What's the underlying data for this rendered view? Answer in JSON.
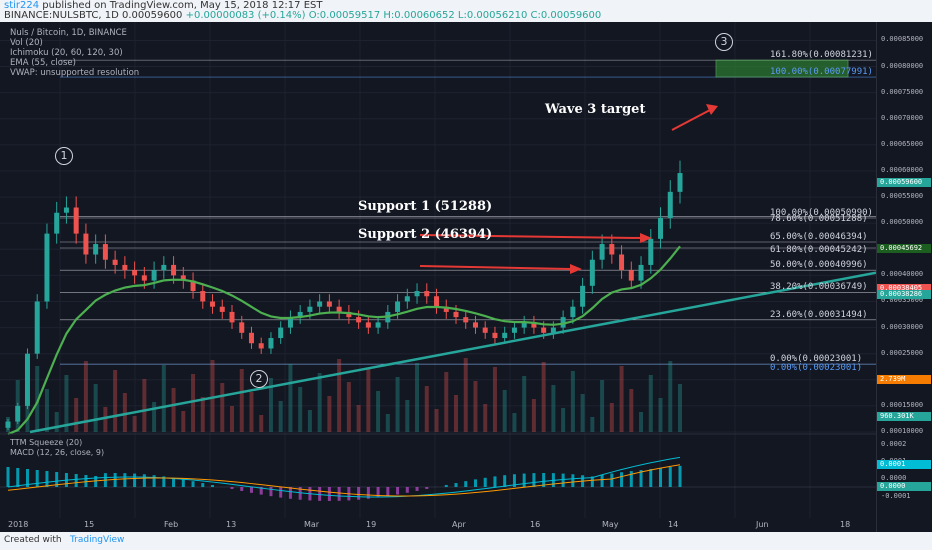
{
  "header": {
    "user": "stir224",
    "published": "published on TradingView.com, May 15, 2018 12:17 EST",
    "ticker_line": "BINANCE:NULSBTC, 1D 0.00059600",
    "change": "+0.00000083 (+0.14%)",
    "ohlc": "O:0.00059517 H:0.00060652 L:0.00056210 C:0.00059600"
  },
  "legend": {
    "title": "Nuls / Bitcoin, 1D, BINANCE",
    "vol": "Vol (20)",
    "ichimoku": "Ichimoku (20, 60, 120, 30)",
    "ema": "EMA (55, close)",
    "vwap": "VWAP: unsupported resolution"
  },
  "annotations": {
    "support1": "Support 1 (51288)",
    "support2": "Support 2 (46394)",
    "wave3": "Wave 3 target",
    "wave_labels": [
      "1",
      "2",
      "3"
    ]
  },
  "fib_levels": [
    {
      "label": "161.80%(0.00081231)",
      "price": 0.00081231,
      "color": "#d1d4dc"
    },
    {
      "label": "100.00%(0.00077991)",
      "price": 0.00077991,
      "color": "#5b9cf6"
    },
    {
      "label": "100.00%(0.00050990)",
      "price": 0.0005099,
      "color": "#d1d4dc"
    },
    {
      "label": "78.60%(0.00051288)",
      "price": 0.00051288,
      "color": "#d1d4dc"
    },
    {
      "label": "65.00%(0.00046394)",
      "price": 0.00046394,
      "color": "#d1d4dc"
    },
    {
      "label": "61.80%(0.00045242)",
      "price": 0.00045242,
      "color": "#d1d4dc"
    },
    {
      "label": "50.00%(0.00040996)",
      "price": 0.00040996,
      "color": "#d1d4dc"
    },
    {
      "label": "38.20%(0.00036749)",
      "price": 0.00036749,
      "color": "#d1d4dc"
    },
    {
      "label": "23.60%(0.00031494)",
      "price": 0.00031494,
      "color": "#d1d4dc"
    },
    {
      "label": "0.00%(0.00023001)",
      "price": 0.00023001,
      "color": "#d1d4dc"
    },
    {
      "label": "0.00%(0.00023001)",
      "price": 0.00023001,
      "color": "#5b9cf6"
    }
  ],
  "price_axis": {
    "ticks": [
      "0.00085000",
      "0.00080000",
      "0.00075000",
      "0.00070000",
      "0.00065000",
      "0.00060000",
      "0.00055000",
      "0.00050000",
      "0.00045000",
      "0.00040000",
      "0.00035000",
      "0.00030000",
      "0.00025000",
      "0.00020000",
      "0.00015000",
      "0.00010000"
    ],
    "badges": [
      {
        "text": "0.00059600",
        "color": "#26a69a"
      },
      {
        "text": "0.00045692",
        "color": "#1b5e20"
      },
      {
        "text": "0.00038405",
        "color": "#ef5350"
      },
      {
        "text": "0.00038286",
        "color": "#26a69a"
      },
      {
        "text": "2.739M",
        "color": "#f57c00"
      },
      {
        "text": "960.301K",
        "color": "#26a69a"
      }
    ],
    "macd_ticks": [
      "0.0002",
      "0.0001",
      "0.0000",
      "-0.0001"
    ],
    "macd_badges": [
      {
        "text": "0.0001",
        "color": "#00bcd4"
      },
      {
        "text": "0.0000",
        "color": "#26a69a"
      }
    ]
  },
  "time_axis": [
    "2018",
    "15",
    "Feb",
    "13",
    "Mar",
    "19",
    "Apr",
    "16",
    "May",
    "14",
    "Jun",
    "18"
  ],
  "macd_legend": {
    "ttm": "TTM Squeeze (20)",
    "macd": "MACD (12, 26, close, 9)"
  },
  "footer": {
    "created": "Created with",
    "brand": "TradingView"
  },
  "chart_data": {
    "type": "candlestick",
    "title": "Nuls / Bitcoin, 1D, BINANCE",
    "y_range": [
      0.0001,
      0.00087
    ],
    "closes": [
      0.00012,
      0.00015,
      0.00025,
      0.00035,
      0.00048,
      0.00052,
      0.00053,
      0.00048,
      0.00044,
      0.00046,
      0.00043,
      0.00042,
      0.00041,
      0.0004,
      0.00039,
      0.00041,
      0.00042,
      0.0004,
      0.00039,
      0.00037,
      0.00035,
      0.00034,
      0.00033,
      0.00031,
      0.00029,
      0.00027,
      0.00026,
      0.00028,
      0.0003,
      0.00032,
      0.00033,
      0.00034,
      0.00035,
      0.00034,
      0.00033,
      0.00032,
      0.00031,
      0.0003,
      0.00031,
      0.00033,
      0.00035,
      0.00036,
      0.00037,
      0.00036,
      0.00034,
      0.00033,
      0.00032,
      0.00031,
      0.0003,
      0.00029,
      0.00028,
      0.00029,
      0.0003,
      0.00031,
      0.0003,
      0.00029,
      0.0003,
      0.00032,
      0.00034,
      0.00038,
      0.00043,
      0.00046,
      0.00044,
      0.00041,
      0.00039,
      0.00042,
      0.00047,
      0.00051,
      0.00056,
      0.000596
    ]
  }
}
